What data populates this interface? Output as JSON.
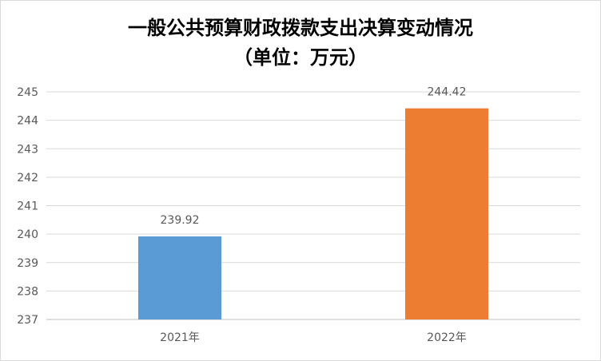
{
  "chart_data": {
    "type": "bar",
    "title_line1": "一般公共预算财政拨款支出决算变动情况",
    "title_line2": "（单位：万元）",
    "categories": [
      "2021年",
      "2022年"
    ],
    "values": [
      239.92,
      244.42
    ],
    "value_labels": [
      "239.92",
      "244.42"
    ],
    "colors": [
      "#5b9bd5",
      "#ed7d31"
    ],
    "ylim": [
      237,
      245
    ],
    "yticks": [
      "237",
      "238",
      "239",
      "240",
      "241",
      "242",
      "243",
      "244",
      "245"
    ],
    "grid": true,
    "legend": "none"
  }
}
